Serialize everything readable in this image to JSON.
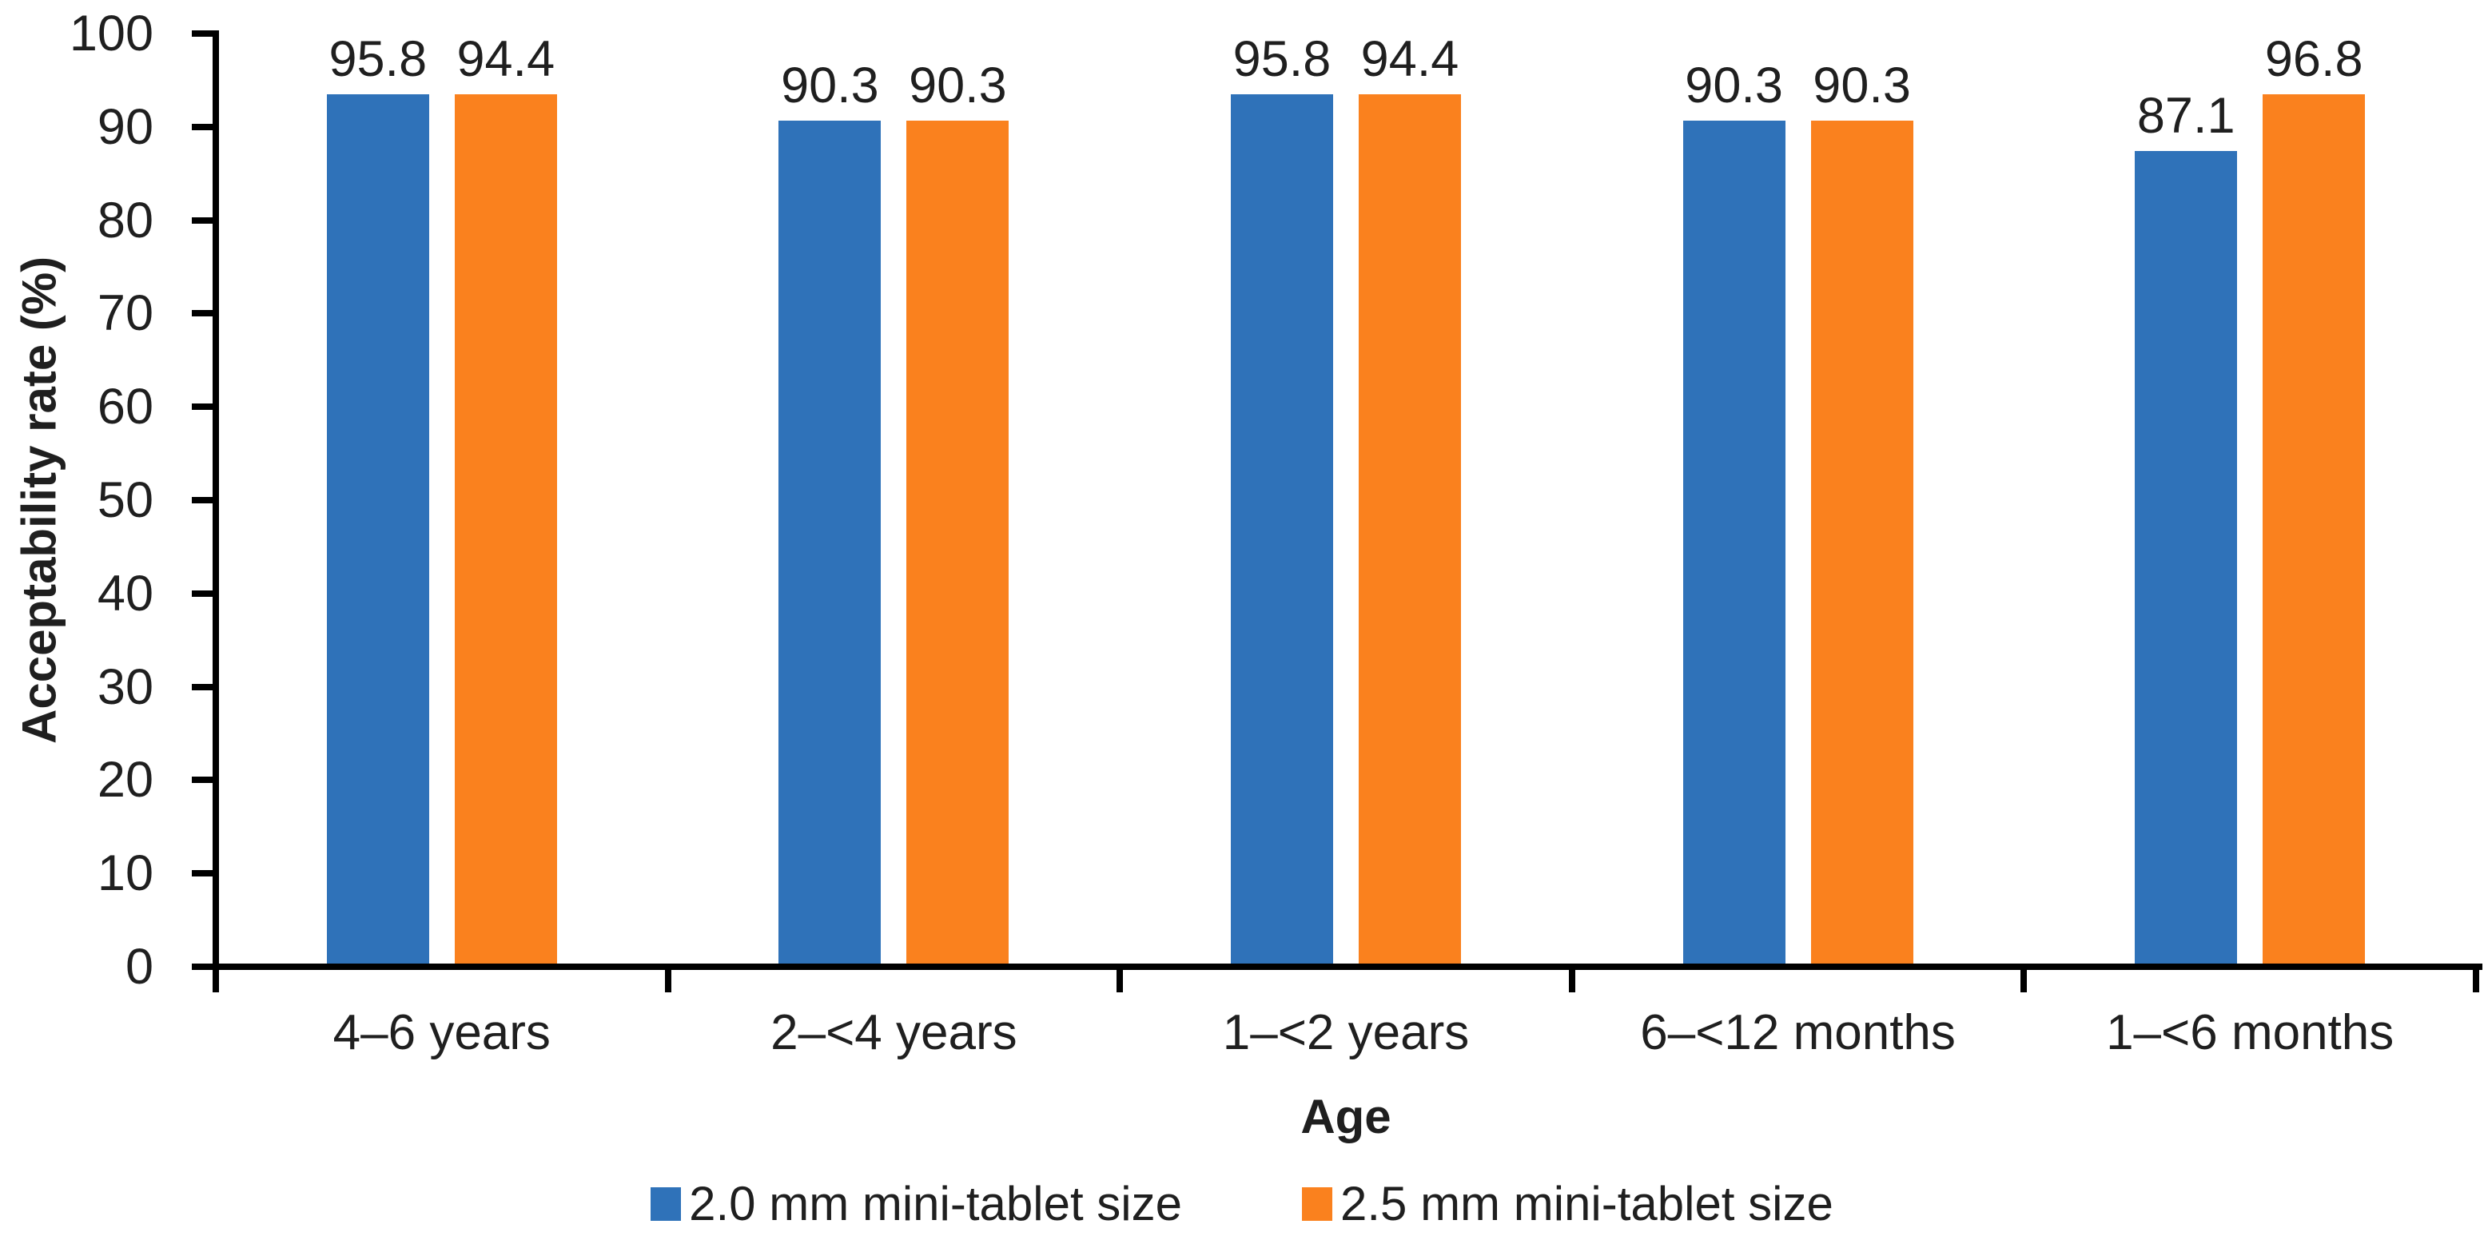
{
  "chart_data": {
    "type": "bar",
    "title": "",
    "categories": [
      "4–6 years",
      "2–<4 years",
      "1–<2 years",
      "6–<12 months",
      "1–<6 months"
    ],
    "series": [
      {
        "name": "2.0 mm mini-tablet size",
        "color": "#2F72B9",
        "values": [
          95.8,
          90.3,
          95.8,
          90.3,
          87.1
        ]
      },
      {
        "name": "2.5 mm mini-tablet size",
        "color": "#FA811E",
        "values": [
          94.4,
          90.3,
          94.4,
          90.3,
          96.8
        ]
      }
    ],
    "xlabel": "Age",
    "ylabel": "Acceptability rate (%)",
    "ylim": [
      0,
      100
    ],
    "yticks": [
      0,
      10,
      20,
      30,
      40,
      50,
      60,
      70,
      80,
      90,
      100
    ],
    "grid": false,
    "legend_position": "bottom",
    "bar_value_labels": true,
    "value_label_decimals": 1,
    "axis_color": "#000000"
  }
}
